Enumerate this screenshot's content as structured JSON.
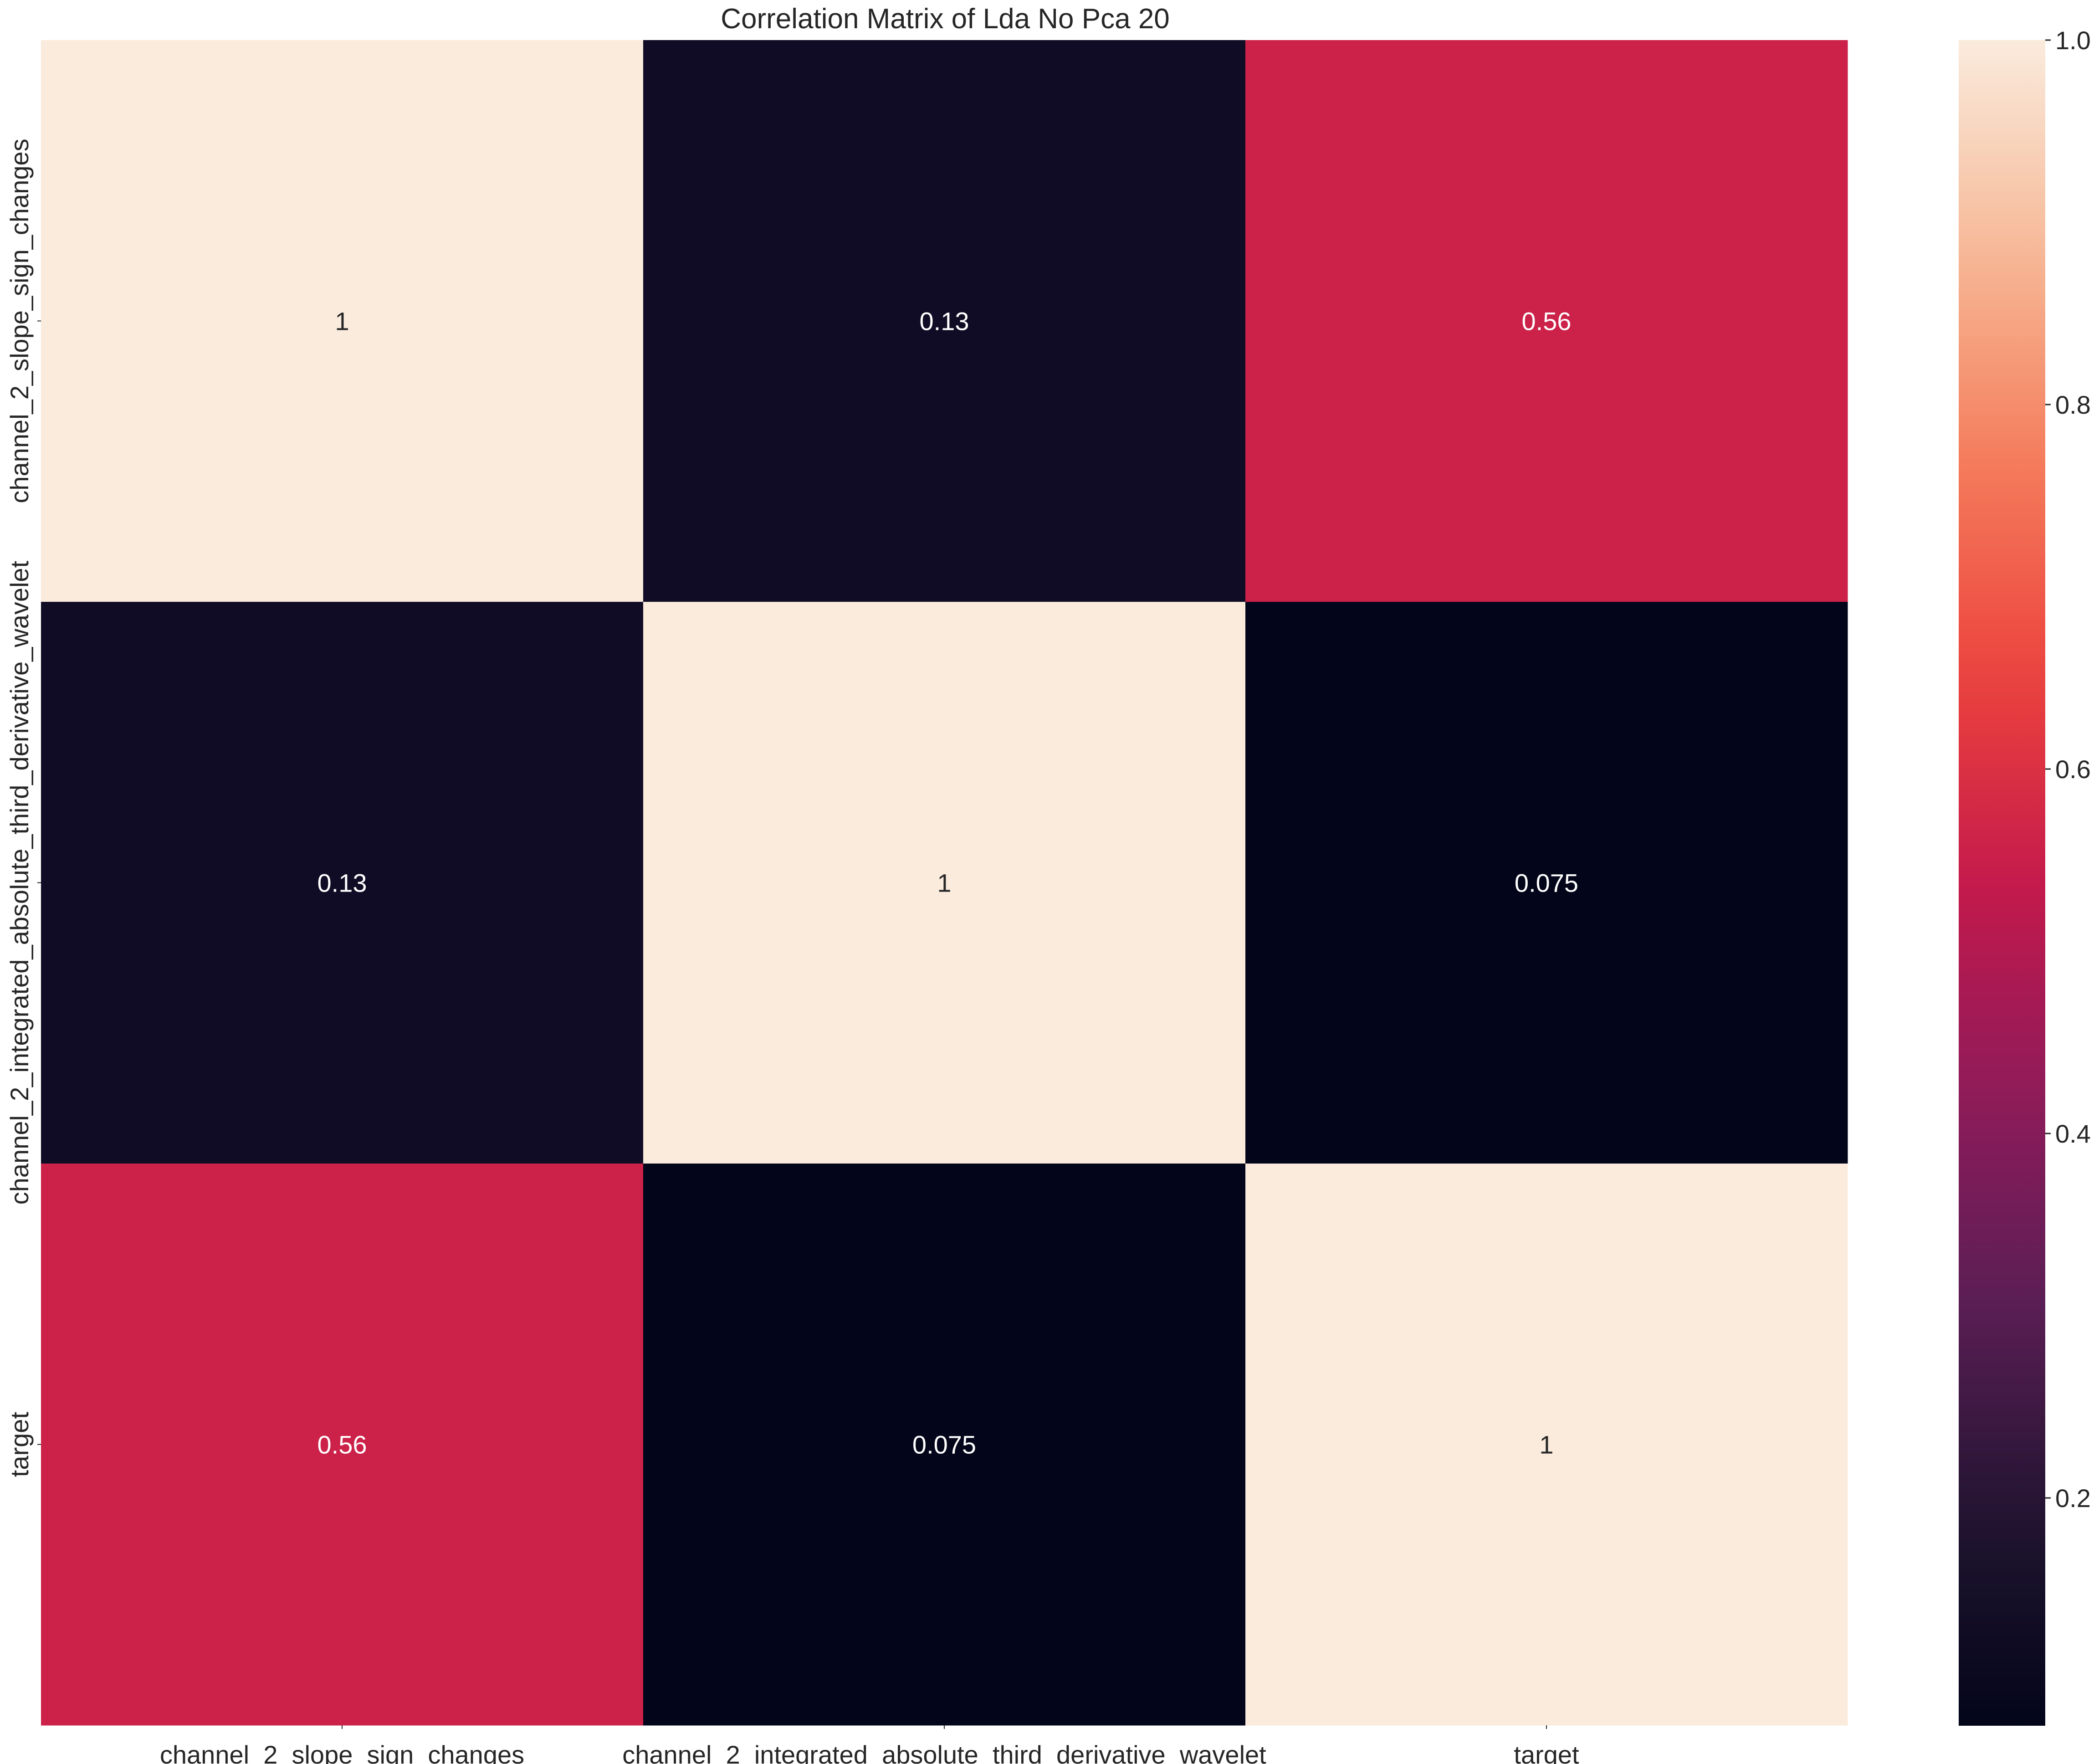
{
  "chart_data": {
    "type": "heatmap",
    "title": "Correlation Matrix of Lda No Pca 20",
    "row_labels": [
      "channel_2_slope_sign_changes",
      "channel_2_integrated_absolute_third_derivative_wavelet",
      "target"
    ],
    "col_labels": [
      "channel_2_slope_sign_changes",
      "channel_2_integrated_absolute_third_derivative_wavelet",
      "target"
    ],
    "values": [
      [
        1,
        0.13,
        0.56
      ],
      [
        0.13,
        1,
        0.075
      ],
      [
        0.56,
        0.075,
        1
      ]
    ],
    "annotations": [
      [
        "1",
        "0.13",
        "0.56"
      ],
      [
        "0.13",
        "1",
        "0.075"
      ],
      [
        "0.56",
        "0.075",
        "1"
      ]
    ],
    "colorbar": {
      "range": [
        0.075,
        1.0
      ],
      "ticks": [
        0.2,
        0.4,
        0.6,
        0.8,
        1.0
      ],
      "tick_labels": [
        "0.2",
        "0.4",
        "0.6",
        "0.8",
        "1.0"
      ],
      "colormap": "rocket"
    },
    "grid": false,
    "legend": "colorbar-right"
  }
}
